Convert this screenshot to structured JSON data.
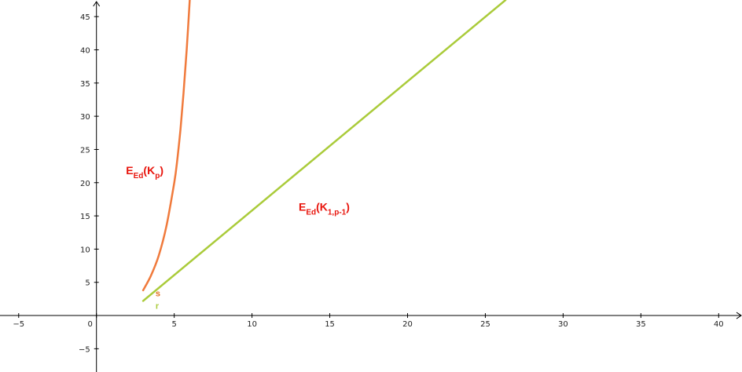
{
  "chart_data": {
    "type": "line",
    "title": "",
    "xlabel": "",
    "ylabel": "",
    "xlim": [
      -6.2,
      41.5
    ],
    "ylim": [
      -8.5,
      47.5
    ],
    "x_ticks": [
      -5,
      0,
      5,
      10,
      15,
      20,
      25,
      30,
      35,
      40
    ],
    "y_ticks": [
      -5,
      5,
      10,
      15,
      20,
      25,
      30,
      35,
      40,
      45
    ],
    "x_tick_labels": [
      "−5",
      "0",
      "5",
      "10",
      "15",
      "20",
      "25",
      "30",
      "35",
      "40"
    ],
    "y_tick_labels": [
      "−5",
      "5",
      "10",
      "15",
      "20",
      "25",
      "30",
      "35",
      "40",
      "45"
    ],
    "grid": false,
    "series": [
      {
        "name": "E_Ed(K_p)",
        "label_main": "E",
        "label_sub": "Ed",
        "label_paren_open": "(K",
        "label_paren_sub": "p",
        "label_paren_close": ")",
        "color": "#f07a3c",
        "x": [
          3.0,
          3.5,
          4.0,
          4.5,
          5.0,
          5.2,
          5.4,
          5.6,
          5.8,
          6.0
        ],
        "y": [
          3.8,
          6.0,
          9.0,
          13.5,
          20.0,
          23.5,
          28.0,
          33.5,
          40.0,
          47.5
        ]
      },
      {
        "name": "E_Ed(K_1,p-1)",
        "label_main": "E",
        "label_sub": "Ed",
        "label_paren_open": "(K",
        "label_paren_sub": "1,p-1",
        "label_paren_close": ")",
        "color": "#aacb3a",
        "x": [
          3.0,
          26.3
        ],
        "y": [
          2.2,
          47.5
        ]
      }
    ],
    "annotations": [
      {
        "text": "s",
        "x": 3.8,
        "y": 3.4,
        "color": "#e07020"
      },
      {
        "text": "r",
        "x": 3.8,
        "y": 1.5,
        "color": "#aacb3a"
      }
    ]
  }
}
